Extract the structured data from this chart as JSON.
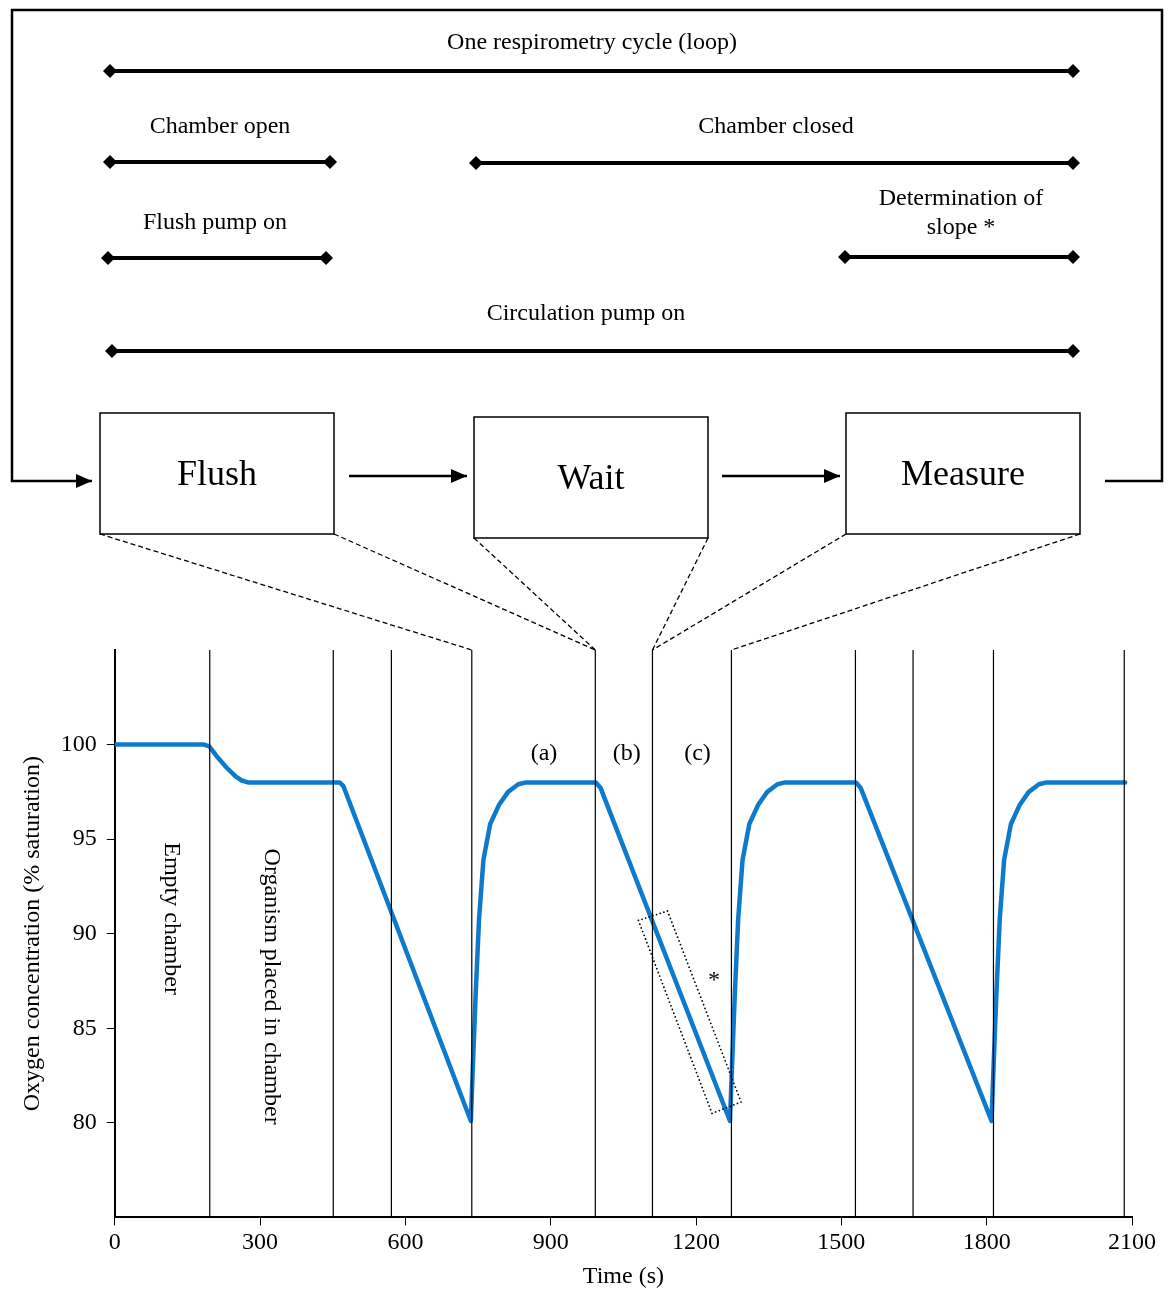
{
  "chart_data": {
    "type": "line",
    "xlabel": "Time (s)",
    "ylabel": "Oxygen concentration (% saturation)",
    "xlim": [
      0,
      2100
    ],
    "xticks": [
      0,
      300,
      600,
      900,
      1200,
      1500,
      1800,
      2100
    ],
    "ylim": [
      75,
      105
    ],
    "yticks": [
      80,
      85,
      90,
      95,
      100
    ],
    "grid": false,
    "legend": false,
    "marker": "none",
    "line_style": "solid",
    "series": [
      {
        "color": "#0f7acb",
        "x": [
          0,
          184,
          195,
          210,
          230,
          250,
          262,
          275,
          464,
          472,
          735,
          740,
          745,
          752,
          761,
          775,
          793,
          812,
          833,
          849,
          993,
          1003,
          1270,
          1275,
          1280,
          1287,
          1296,
          1310,
          1328,
          1347,
          1368,
          1384,
          1530,
          1540,
          1810,
          1815,
          1820,
          1827,
          1836,
          1850,
          1868,
          1887,
          1908,
          1924,
          2086
        ],
        "values": [
          100,
          100,
          99.9,
          99.4,
          98.8,
          98.3,
          98.1,
          98,
          98,
          97.8,
          80.1,
          83.5,
          86.8,
          90.8,
          93.9,
          95.8,
          96.8,
          97.5,
          97.9,
          98,
          98,
          97.7,
          80.1,
          83.5,
          86.8,
          90.8,
          93.9,
          95.8,
          96.8,
          97.5,
          97.9,
          98,
          98,
          97.7,
          80.1,
          83.5,
          86.8,
          90.8,
          93.9,
          95.8,
          96.8,
          97.5,
          97.9,
          98,
          98
        ]
      }
    ],
    "ref_lines": [
      {
        "axis": "x",
        "value": 196
      },
      {
        "axis": "x",
        "value": 451
      },
      {
        "axis": "x",
        "value": 571
      },
      {
        "axis": "x",
        "value": 737
      },
      {
        "axis": "x",
        "value": 992
      },
      {
        "axis": "x",
        "value": 1110
      },
      {
        "axis": "x",
        "value": 1273
      },
      {
        "axis": "x",
        "value": 1529
      },
      {
        "axis": "x",
        "value": 1648
      },
      {
        "axis": "x",
        "value": 1814
      },
      {
        "axis": "x",
        "value": 2084
      }
    ],
    "annotations": [
      "One respirometry cycle (loop)",
      "Chamber open",
      "Chamber closed",
      "Flush pump on",
      "Determination of slope *",
      "Circulation pump on",
      "Flush",
      "Wait",
      "Measure",
      "(a)",
      "(b)",
      "(c)",
      "*",
      "Empty chamber",
      "Organism placed in chamber"
    ]
  }
}
